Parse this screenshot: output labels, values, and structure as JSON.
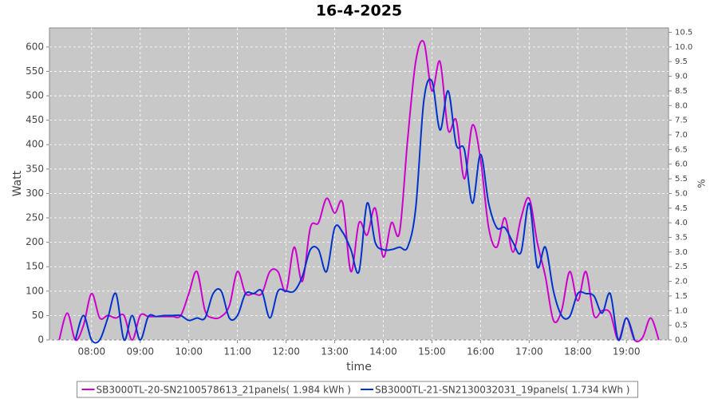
{
  "chart_data": {
    "type": "line",
    "title": "16-4-2025",
    "x_label": "time",
    "y_label": "Watt",
    "y2_label": "%",
    "x": [
      "07:20",
      "07:30",
      "07:40",
      "07:50",
      "08:00",
      "08:10",
      "08:20",
      "08:30",
      "08:40",
      "08:50",
      "09:00",
      "09:10",
      "09:20",
      "09:30",
      "09:40",
      "09:50",
      "10:00",
      "10:10",
      "10:20",
      "10:30",
      "10:40",
      "10:50",
      "11:00",
      "11:10",
      "11:20",
      "11:30",
      "11:40",
      "11:50",
      "12:00",
      "12:10",
      "12:20",
      "12:30",
      "12:40",
      "12:50",
      "13:00",
      "13:10",
      "13:20",
      "13:30",
      "13:40",
      "13:50",
      "14:00",
      "14:10",
      "14:20",
      "14:30",
      "14:40",
      "14:50",
      "15:00",
      "15:10",
      "15:20",
      "15:30",
      "15:40",
      "15:50",
      "16:00",
      "16:10",
      "16:20",
      "16:30",
      "16:40",
      "16:50",
      "17:00",
      "17:10",
      "17:20",
      "17:30",
      "17:40",
      "17:50",
      "18:00",
      "18:10",
      "18:20",
      "18:30",
      "18:40",
      "18:50",
      "19:00",
      "19:10",
      "19:20",
      "19:30",
      "19:40"
    ],
    "series": [
      {
        "name": "SB3000TL-20-SN2100578613_21panels( 1.984 kWh )",
        "color": "#cc00cc",
        "values": [
          0,
          55,
          0,
          30,
          95,
          45,
          50,
          45,
          50,
          0,
          50,
          48,
          48,
          48,
          48,
          50,
          95,
          140,
          60,
          45,
          48,
          70,
          140,
          95,
          95,
          95,
          140,
          140,
          100,
          190,
          120,
          230,
          240,
          290,
          260,
          280,
          140,
          240,
          215,
          270,
          170,
          240,
          220,
          410,
          570,
          610,
          510,
          570,
          430,
          450,
          330,
          440,
          370,
          230,
          190,
          250,
          180,
          250,
          290,
          200,
          130,
          40,
          60,
          140,
          80,
          140,
          50,
          60,
          55,
          0,
          45,
          0,
          5,
          45,
          0
        ]
      },
      {
        "name": "SB3000TL-21-SN2130032031_19panels( 1.734 kWh )",
        "color": "#0033cc",
        "values": [
          null,
          null,
          0,
          50,
          0,
          0,
          45,
          95,
          0,
          50,
          0,
          48,
          48,
          50,
          50,
          50,
          40,
          45,
          45,
          95,
          100,
          45,
          50,
          95,
          95,
          100,
          45,
          100,
          100,
          100,
          130,
          185,
          185,
          140,
          230,
          220,
          185,
          140,
          280,
          200,
          185,
          185,
          190,
          190,
          270,
          490,
          530,
          430,
          510,
          400,
          390,
          280,
          380,
          280,
          230,
          230,
          200,
          180,
          280,
          150,
          190,
          100,
          50,
          48,
          95,
          95,
          90,
          55,
          95,
          0,
          45,
          0,
          null,
          null,
          null
        ]
      }
    ],
    "xlim": [
      "07:08",
      "19:52"
    ],
    "xticks": [
      "08:00",
      "09:00",
      "10:00",
      "11:00",
      "12:00",
      "13:00",
      "14:00",
      "15:00",
      "16:00",
      "17:00",
      "18:00",
      "19:00"
    ],
    "ylim": [
      0,
      639
    ],
    "yticks": [
      0,
      50,
      100,
      150,
      200,
      250,
      300,
      350,
      400,
      450,
      500,
      550,
      600
    ],
    "y2lim": [
      0,
      10.65
    ],
    "y2ticks": [
      {
        "value": 0,
        "label": "0.0"
      },
      0.5,
      {
        "value": 1,
        "label": "1.0"
      },
      1.5,
      {
        "value": 2,
        "label": "2.0"
      },
      2.5,
      {
        "value": 3,
        "label": "3.0"
      },
      3.5,
      {
        "value": 4,
        "label": "4.0"
      },
      4.5,
      {
        "value": 5,
        "label": "5.0"
      },
      5.5,
      {
        "value": 6,
        "label": "6.0"
      },
      6.5,
      {
        "value": 7,
        "label": "7.0"
      },
      7.5,
      {
        "value": 8,
        "label": "8.0"
      },
      8.5,
      {
        "value": 9,
        "label": "9.0"
      },
      9.5,
      {
        "value": 10,
        "label": "10.0"
      },
      10.5
    ],
    "grid": true,
    "legend": "bottom"
  }
}
